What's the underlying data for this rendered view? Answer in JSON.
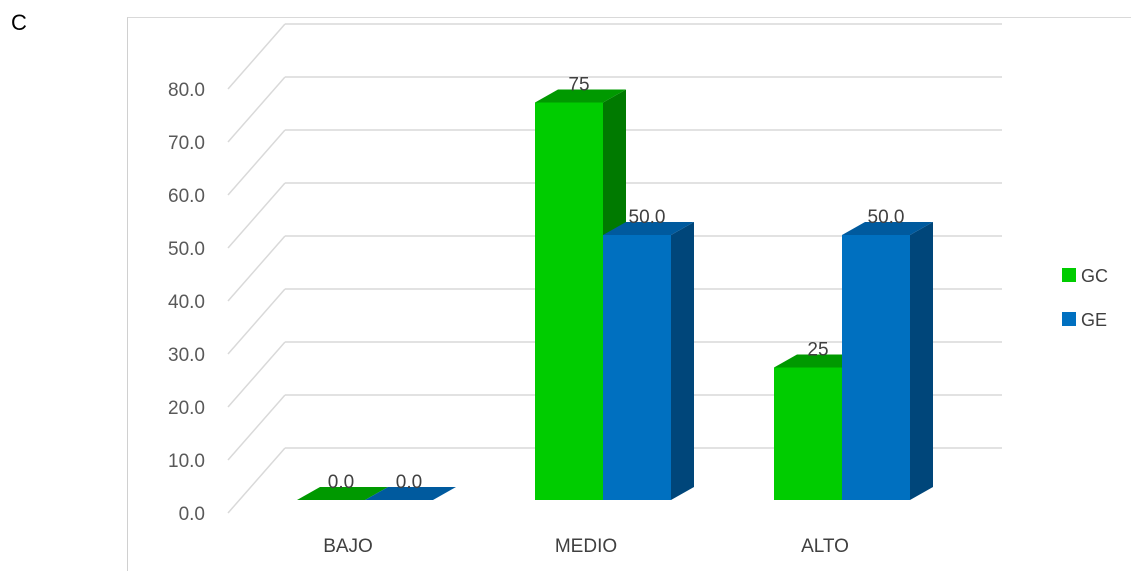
{
  "panel_label": "C",
  "chart_data": {
    "type": "bar",
    "style": "3d-clustered-column",
    "categories": [
      "BAJO",
      "MEDIO",
      "ALTO"
    ],
    "series": [
      {
        "name": "GC",
        "values": [
          0,
          75,
          25
        ],
        "labels": [
          "0.0",
          "75",
          "25"
        ],
        "color": "#00cc00",
        "side_color": "#007a00",
        "top_color": "#009900"
      },
      {
        "name": "GE",
        "values": [
          0,
          50,
          50
        ],
        "labels": [
          "0.0",
          "50.0",
          "50.0"
        ],
        "color": "#0070c0",
        "side_color": "#00467a",
        "top_color": "#005a9e"
      }
    ],
    "ylim": [
      0,
      80
    ],
    "yticks": [
      "0.0",
      "10.0",
      "20.0",
      "30.0",
      "40.0",
      "50.0",
      "60.0",
      "70.0",
      "80.0"
    ],
    "grid": true,
    "legend_position": "right",
    "title": "",
    "xlabel": "",
    "ylabel": ""
  }
}
